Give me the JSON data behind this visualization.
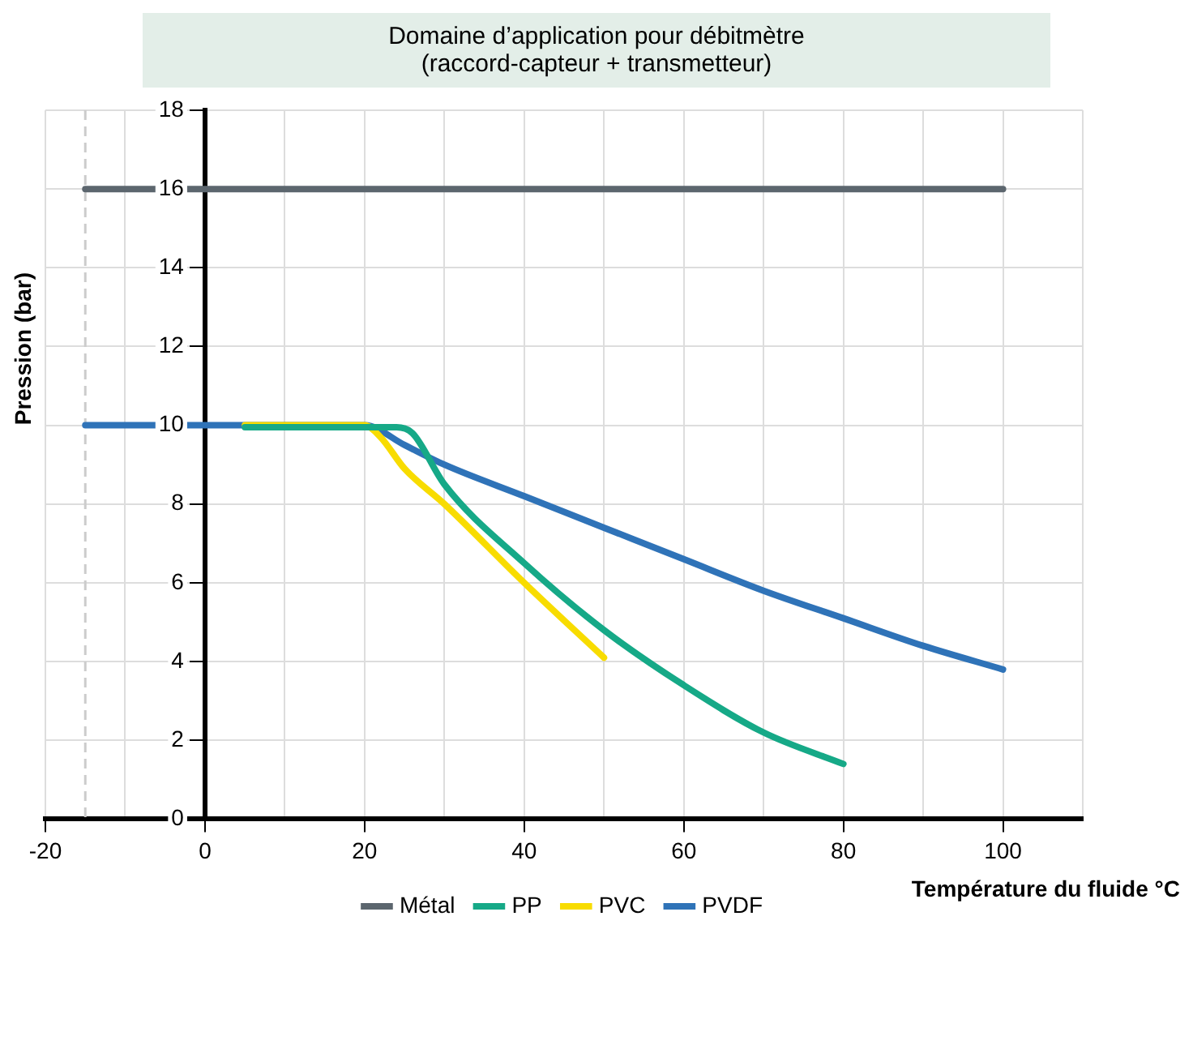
{
  "chart_data": {
    "type": "line",
    "title": "Domaine d’application pour débitmètre\n(raccord-capteur + transmetteur)",
    "xlabel": "Température du fluide °C",
    "ylabel": "Pression (bar)",
    "xlim": [
      -20,
      110
    ],
    "ylim": [
      0,
      18
    ],
    "xticks": [
      -20,
      {
        "value": -10,
        "label": null
      },
      0,
      {
        "value": 10,
        "label": null
      },
      20,
      {
        "value": 30,
        "label": null
      },
      40,
      {
        "value": 50,
        "label": null
      },
      60,
      {
        "value": 70,
        "label": null
      },
      80,
      {
        "value": 90,
        "label": null
      },
      100,
      {
        "value": 110,
        "label": null
      }
    ],
    "yticks": [
      0,
      2,
      4,
      6,
      8,
      10,
      12,
      14,
      16,
      18
    ],
    "grid": true,
    "legend": "bottom",
    "marker": "none",
    "line_style": "solid",
    "ref_lines": [
      {
        "axis": "x",
        "value": -15,
        "color": "#cccccc",
        "line_style": "dashed"
      }
    ],
    "series": [
      {
        "name": "PVDF",
        "color": "#2f73b8",
        "x": [
          -15,
          20,
          25,
          30,
          40,
          50,
          60,
          70,
          80,
          90,
          100
        ],
        "values": [
          10,
          10,
          9.5,
          9.0,
          8.2,
          7.4,
          6.6,
          5.8,
          5.1,
          4.4,
          3.8
        ]
      },
      {
        "name": "PVC",
        "color": "#f8dc00",
        "x": [
          5,
          20,
          22,
          25,
          30,
          40,
          50
        ],
        "values": [
          10,
          10,
          9.7,
          8.9,
          8.0,
          6.0,
          4.1
        ]
      },
      {
        "name": "PP",
        "color": "#16a987",
        "x": [
          5,
          24,
          26,
          30,
          40,
          50,
          60,
          70,
          80
        ],
        "values": [
          9.95,
          9.95,
          9.8,
          8.5,
          6.5,
          4.8,
          3.4,
          2.2,
          1.4
        ]
      },
      {
        "name": "Métal",
        "color": "#5c666e",
        "x": [
          -15,
          100
        ],
        "values": [
          16,
          16
        ]
      }
    ]
  }
}
